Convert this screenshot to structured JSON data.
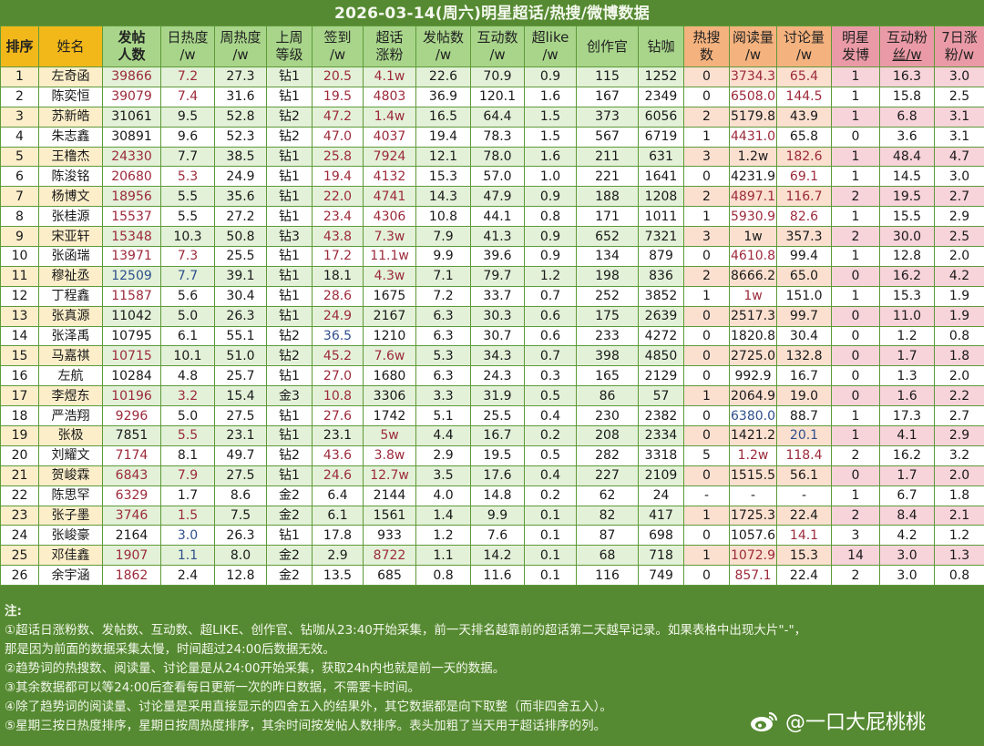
{
  "title": "2026-03-14(周六)明星超话/热搜/微博数据",
  "columns": [
    {
      "key": "rank",
      "label": "排序",
      "group": "yel",
      "bold": true
    },
    {
      "key": "name",
      "label": "姓名",
      "group": "yel",
      "bold": false
    },
    {
      "key": "posters",
      "label": "发帖人数",
      "group": "grn",
      "bold": true
    },
    {
      "key": "daily_heat",
      "label": "日热度/w",
      "group": "grn",
      "bold": false
    },
    {
      "key": "weekly_heat",
      "label": "周热度/w",
      "group": "grn",
      "bold": false
    },
    {
      "key": "last_week_level",
      "label": "上周等级",
      "group": "grn",
      "bold": false
    },
    {
      "key": "checkin",
      "label": "签到/w",
      "group": "grn",
      "bold": false
    },
    {
      "key": "topic_fans_gain",
      "label": "超话涨粉",
      "group": "grn",
      "bold": false
    },
    {
      "key": "posts",
      "label": "发帖数/w",
      "group": "grn",
      "bold": false
    },
    {
      "key": "interactions",
      "label": "互动数/w",
      "group": "grn",
      "bold": false
    },
    {
      "key": "super_like",
      "label": "超like/w",
      "group": "grn",
      "bold": false
    },
    {
      "key": "creator",
      "label": "创作官",
      "group": "grn",
      "bold": false
    },
    {
      "key": "diamond_coffee",
      "label": "钻咖",
      "group": "grn",
      "bold": false
    },
    {
      "key": "hot_search",
      "label": "热搜数",
      "group": "org",
      "bold": false
    },
    {
      "key": "reads",
      "label": "阅读量/w",
      "group": "org",
      "bold": false
    },
    {
      "key": "discussions",
      "label": "讨论量/w",
      "group": "org",
      "bold": false
    },
    {
      "key": "star_posts",
      "label": "明星发博",
      "group": "pnk",
      "bold": false
    },
    {
      "key": "interactive_fans",
      "label": "互动粉丝/w",
      "group": "pnk",
      "bold": false
    },
    {
      "key": "fans_7d",
      "label": "7日涨粉/w",
      "group": "pnk",
      "bold": false
    }
  ],
  "header": {
    "rank": "排序",
    "name": "姓名",
    "posters_1": "发帖",
    "posters_2": "人数",
    "daily_heat_1": "日热度",
    "daily_heat_2": "/w",
    "weekly_heat_1": "周热度",
    "weekly_heat_2": "/w",
    "level_1": "上周",
    "level_2": "等级",
    "checkin_1": "签到",
    "checkin_2": "/w",
    "fans_gain_1": "超话",
    "fans_gain_2": "涨粉",
    "posts_1": "发帖数",
    "posts_2": "/w",
    "interactions_1": "互动数",
    "interactions_2": "/w",
    "superlike_1": "超like",
    "superlike_2": "/w",
    "creator": "创作官",
    "diamond": "钻咖",
    "hot_search_1": "热搜",
    "hot_search_2": "数",
    "reads_1": "阅读量",
    "reads_2": "/w",
    "discussions_1": "讨论量",
    "discussions_2": "/w",
    "star_posts_1": "明星",
    "star_posts_2": "发博",
    "int_fans_1": "互动粉",
    "int_fans_2": "丝/w",
    "fans7_1": "7日涨",
    "fans7_2": "粉/w"
  },
  "rows": [
    {
      "rank": "1",
      "name": "左奇函",
      "posters": "39866",
      "daily_heat": "7.2",
      "weekly_heat": "27.3",
      "level": "钻1",
      "checkin": "20.5",
      "fans_gain": "4.1w",
      "posts": "22.6",
      "interactions": "70.9",
      "super_like": "0.9",
      "creator": "115",
      "diamond": "1252",
      "hot_search": "0",
      "reads": "3734.3",
      "discussions": "65.4",
      "star_posts": "1",
      "int_fans": "16.3",
      "fans7": "3.0"
    },
    {
      "rank": "2",
      "name": "陈奕恒",
      "posters": "39079",
      "daily_heat": "7.4",
      "weekly_heat": "31.6",
      "level": "钻1",
      "checkin": "19.5",
      "fans_gain": "4803",
      "posts": "36.9",
      "interactions": "120.1",
      "super_like": "1.6",
      "creator": "167",
      "diamond": "2349",
      "hot_search": "0",
      "reads": "6508.0",
      "discussions": "144.5",
      "star_posts": "1",
      "int_fans": "15.8",
      "fans7": "2.5"
    },
    {
      "rank": "3",
      "name": "苏新皓",
      "posters": "31061",
      "daily_heat": "9.5",
      "weekly_heat": "52.8",
      "level": "钻2",
      "checkin": "47.2",
      "fans_gain": "1.4w",
      "posts": "16.5",
      "interactions": "64.4",
      "super_like": "1.5",
      "creator": "373",
      "diamond": "6056",
      "hot_search": "2",
      "reads": "5179.8",
      "discussions": "43.9",
      "star_posts": "1",
      "int_fans": "6.8",
      "fans7": "3.1"
    },
    {
      "rank": "4",
      "name": "朱志鑫",
      "posters": "30891",
      "daily_heat": "9.6",
      "weekly_heat": "52.3",
      "level": "钻2",
      "checkin": "47.0",
      "fans_gain": "4037",
      "posts": "19.4",
      "interactions": "78.3",
      "super_like": "1.5",
      "creator": "567",
      "diamond": "6719",
      "hot_search": "1",
      "reads": "4431.0",
      "discussions": "65.8",
      "star_posts": "0",
      "int_fans": "3.6",
      "fans7": "3.1"
    },
    {
      "rank": "5",
      "name": "王橹杰",
      "posters": "24330",
      "daily_heat": "7.7",
      "weekly_heat": "38.5",
      "level": "钻1",
      "checkin": "25.8",
      "fans_gain": "7924",
      "posts": "12.1",
      "interactions": "78.0",
      "super_like": "1.6",
      "creator": "211",
      "diamond": "631",
      "hot_search": "3",
      "reads": "1.2w",
      "discussions": "182.6",
      "star_posts": "1",
      "int_fans": "48.4",
      "fans7": "4.7"
    },
    {
      "rank": "6",
      "name": "陈浚铭",
      "posters": "20680",
      "daily_heat": "5.3",
      "weekly_heat": "24.9",
      "level": "钻1",
      "checkin": "19.4",
      "fans_gain": "4132",
      "posts": "15.3",
      "interactions": "57.0",
      "super_like": "1.0",
      "creator": "221",
      "diamond": "1641",
      "hot_search": "0",
      "reads": "4231.9",
      "discussions": "69.1",
      "star_posts": "1",
      "int_fans": "14.5",
      "fans7": "3.0"
    },
    {
      "rank": "7",
      "name": "杨博文",
      "posters": "18956",
      "daily_heat": "5.5",
      "weekly_heat": "35.6",
      "level": "钻1",
      "checkin": "22.0",
      "fans_gain": "4741",
      "posts": "14.3",
      "interactions": "47.9",
      "super_like": "0.9",
      "creator": "188",
      "diamond": "1208",
      "hot_search": "2",
      "reads": "4897.1",
      "discussions": "116.7",
      "star_posts": "2",
      "int_fans": "19.5",
      "fans7": "2.7"
    },
    {
      "rank": "8",
      "name": "张桂源",
      "posters": "15537",
      "daily_heat": "5.5",
      "weekly_heat": "27.2",
      "level": "钻1",
      "checkin": "23.4",
      "fans_gain": "4306",
      "posts": "10.8",
      "interactions": "44.1",
      "super_like": "0.8",
      "creator": "171",
      "diamond": "1011",
      "hot_search": "1",
      "reads": "5930.9",
      "discussions": "82.6",
      "star_posts": "1",
      "int_fans": "15.5",
      "fans7": "2.9"
    },
    {
      "rank": "9",
      "name": "宋亚轩",
      "posters": "15348",
      "daily_heat": "10.3",
      "weekly_heat": "50.8",
      "level": "钻3",
      "checkin": "43.8",
      "fans_gain": "7.3w",
      "posts": "7.9",
      "interactions": "41.3",
      "super_like": "0.9",
      "creator": "652",
      "diamond": "7321",
      "hot_search": "3",
      "reads": "1w",
      "discussions": "357.3",
      "star_posts": "2",
      "int_fans": "30.0",
      "fans7": "2.5"
    },
    {
      "rank": "10",
      "name": "张函瑞",
      "posters": "13971",
      "daily_heat": "7.3",
      "weekly_heat": "25.5",
      "level": "钻1",
      "checkin": "17.2",
      "fans_gain": "11.1w",
      "posts": "9.9",
      "interactions": "39.6",
      "super_like": "0.9",
      "creator": "134",
      "diamond": "879",
      "hot_search": "0",
      "reads": "4610.8",
      "discussions": "99.4",
      "star_posts": "1",
      "int_fans": "12.8",
      "fans7": "2.0"
    },
    {
      "rank": "11",
      "name": "穆祉丞",
      "posters": "12509",
      "daily_heat": "7.7",
      "weekly_heat": "39.1",
      "level": "钻1",
      "checkin": "18.1",
      "fans_gain": "4.3w",
      "posts": "7.1",
      "interactions": "79.7",
      "super_like": "1.2",
      "creator": "198",
      "diamond": "836",
      "hot_search": "2",
      "reads": "8666.2",
      "discussions": "65.0",
      "star_posts": "0",
      "int_fans": "16.2",
      "fans7": "4.2"
    },
    {
      "rank": "12",
      "name": "丁程鑫",
      "posters": "11587",
      "daily_heat": "5.6",
      "weekly_heat": "30.4",
      "level": "钻1",
      "checkin": "28.6",
      "fans_gain": "1675",
      "posts": "7.2",
      "interactions": "33.7",
      "super_like": "0.7",
      "creator": "252",
      "diamond": "3852",
      "hot_search": "1",
      "reads": "1w",
      "discussions": "151.0",
      "star_posts": "1",
      "int_fans": "15.3",
      "fans7": "1.9"
    },
    {
      "rank": "13",
      "name": "张真源",
      "posters": "11042",
      "daily_heat": "5.0",
      "weekly_heat": "26.3",
      "level": "钻1",
      "checkin": "24.9",
      "fans_gain": "2167",
      "posts": "6.3",
      "interactions": "30.3",
      "super_like": "0.6",
      "creator": "175",
      "diamond": "2639",
      "hot_search": "0",
      "reads": "2517.3",
      "discussions": "99.7",
      "star_posts": "0",
      "int_fans": "11.0",
      "fans7": "1.9"
    },
    {
      "rank": "14",
      "name": "张泽禹",
      "posters": "10795",
      "daily_heat": "6.1",
      "weekly_heat": "55.1",
      "level": "钻2",
      "checkin": "36.5",
      "fans_gain": "1210",
      "posts": "6.3",
      "interactions": "30.7",
      "super_like": "0.6",
      "creator": "233",
      "diamond": "4272",
      "hot_search": "0",
      "reads": "1820.8",
      "discussions": "30.4",
      "star_posts": "0",
      "int_fans": "1.2",
      "fans7": "0.8"
    },
    {
      "rank": "15",
      "name": "马嘉祺",
      "posters": "10715",
      "daily_heat": "10.1",
      "weekly_heat": "51.0",
      "level": "钻2",
      "checkin": "45.2",
      "fans_gain": "7.6w",
      "posts": "5.3",
      "interactions": "34.3",
      "super_like": "0.7",
      "creator": "398",
      "diamond": "4850",
      "hot_search": "0",
      "reads": "2725.0",
      "discussions": "132.8",
      "star_posts": "0",
      "int_fans": "1.7",
      "fans7": "1.8"
    },
    {
      "rank": "16",
      "name": "左航",
      "posters": "10284",
      "daily_heat": "4.8",
      "weekly_heat": "25.7",
      "level": "钻1",
      "checkin": "27.0",
      "fans_gain": "1680",
      "posts": "6.3",
      "interactions": "24.3",
      "super_like": "0.3",
      "creator": "165",
      "diamond": "2129",
      "hot_search": "0",
      "reads": "992.9",
      "discussions": "16.7",
      "star_posts": "0",
      "int_fans": "1.3",
      "fans7": "2.0"
    },
    {
      "rank": "17",
      "name": "李煜东",
      "posters": "10196",
      "daily_heat": "3.2",
      "weekly_heat": "15.4",
      "level": "金3",
      "checkin": "10.8",
      "fans_gain": "3306",
      "posts": "3.3",
      "interactions": "31.9",
      "super_like": "0.5",
      "creator": "86",
      "diamond": "57",
      "hot_search": "1",
      "reads": "2064.9",
      "discussions": "19.0",
      "star_posts": "0",
      "int_fans": "1.6",
      "fans7": "2.2"
    },
    {
      "rank": "18",
      "name": "严浩翔",
      "posters": "9296",
      "daily_heat": "5.0",
      "weekly_heat": "27.5",
      "level": "钻1",
      "checkin": "27.6",
      "fans_gain": "1742",
      "posts": "5.1",
      "interactions": "25.5",
      "super_like": "0.4",
      "creator": "230",
      "diamond": "2382",
      "hot_search": "0",
      "reads": "6380.0",
      "discussions": "88.7",
      "star_posts": "1",
      "int_fans": "17.3",
      "fans7": "2.7"
    },
    {
      "rank": "19",
      "name": "张极",
      "posters": "7851",
      "daily_heat": "5.5",
      "weekly_heat": "23.1",
      "level": "钻1",
      "checkin": "23.1",
      "fans_gain": "5w",
      "posts": "4.4",
      "interactions": "16.7",
      "super_like": "0.2",
      "creator": "208",
      "diamond": "2334",
      "hot_search": "0",
      "reads": "1421.2",
      "discussions": "20.1",
      "star_posts": "1",
      "int_fans": "4.1",
      "fans7": "2.9"
    },
    {
      "rank": "20",
      "name": "刘耀文",
      "posters": "7174",
      "daily_heat": "8.1",
      "weekly_heat": "49.7",
      "level": "钻2",
      "checkin": "43.6",
      "fans_gain": "3.8w",
      "posts": "2.9",
      "interactions": "19.5",
      "super_like": "0.5",
      "creator": "282",
      "diamond": "3318",
      "hot_search": "5",
      "reads": "1.2w",
      "discussions": "118.4",
      "star_posts": "2",
      "int_fans": "16.2",
      "fans7": "3.2"
    },
    {
      "rank": "21",
      "name": "贺峻霖",
      "posters": "6843",
      "daily_heat": "7.9",
      "weekly_heat": "27.5",
      "level": "钻1",
      "checkin": "24.6",
      "fans_gain": "12.7w",
      "posts": "3.5",
      "interactions": "17.6",
      "super_like": "0.4",
      "creator": "227",
      "diamond": "2109",
      "hot_search": "0",
      "reads": "1515.5",
      "discussions": "56.1",
      "star_posts": "0",
      "int_fans": "1.7",
      "fans7": "2.0"
    },
    {
      "rank": "22",
      "name": "陈思罕",
      "posters": "6329",
      "daily_heat": "1.7",
      "weekly_heat": "8.6",
      "level": "金2",
      "checkin": "6.4",
      "fans_gain": "2144",
      "posts": "4.0",
      "interactions": "14.8",
      "super_like": "0.2",
      "creator": "62",
      "diamond": "24",
      "hot_search": "-",
      "reads": "-",
      "discussions": "-",
      "star_posts": "1",
      "int_fans": "6.7",
      "fans7": "1.8"
    },
    {
      "rank": "23",
      "name": "张子墨",
      "posters": "3746",
      "daily_heat": "1.5",
      "weekly_heat": "7.5",
      "level": "金2",
      "checkin": "6.1",
      "fans_gain": "1561",
      "posts": "1.4",
      "interactions": "9.9",
      "super_like": "0.1",
      "creator": "82",
      "diamond": "417",
      "hot_search": "1",
      "reads": "1725.3",
      "discussions": "22.4",
      "star_posts": "2",
      "int_fans": "8.4",
      "fans7": "2.1"
    },
    {
      "rank": "24",
      "name": "张峻豪",
      "posters": "2164",
      "daily_heat": "3.0",
      "weekly_heat": "26.3",
      "level": "钻1",
      "checkin": "17.8",
      "fans_gain": "933",
      "posts": "1.2",
      "interactions": "7.6",
      "super_like": "0.1",
      "creator": "87",
      "diamond": "698",
      "hot_search": "0",
      "reads": "1057.6",
      "discussions": "14.1",
      "star_posts": "3",
      "int_fans": "4.2",
      "fans7": "1.2"
    },
    {
      "rank": "25",
      "name": "邓佳鑫",
      "posters": "1907",
      "daily_heat": "1.1",
      "weekly_heat": "8.0",
      "level": "金2",
      "checkin": "2.9",
      "fans_gain": "8722",
      "posts": "1.1",
      "interactions": "14.2",
      "super_like": "0.1",
      "creator": "68",
      "diamond": "718",
      "hot_search": "1",
      "reads": "1072.9",
      "discussions": "15.3",
      "star_posts": "14",
      "int_fans": "3.0",
      "fans7": "1.3"
    },
    {
      "rank": "26",
      "name": "余宇涵",
      "posters": "1862",
      "daily_heat": "2.4",
      "weekly_heat": "12.8",
      "level": "金2",
      "checkin": "13.5",
      "fans_gain": "685",
      "posts": "0.8",
      "interactions": "11.6",
      "super_like": "0.1",
      "creator": "116",
      "diamond": "749",
      "hot_search": "0",
      "reads": "857.1",
      "discussions": "22.4",
      "star_posts": "2",
      "int_fans": "3.0",
      "fans7": "0.8"
    }
  ],
  "cell_colors": {
    "red": "#9c2a3a",
    "blue": "#2e4f8c",
    "red_cells": {
      "posters": [
        1,
        2,
        5,
        6,
        7,
        8,
        9,
        10,
        12,
        15,
        17,
        18,
        20,
        21,
        22,
        23,
        25,
        26
      ],
      "blue_posters": [
        11
      ],
      "daily_heat": [
        1,
        2,
        6,
        10,
        17,
        19,
        21,
        23
      ],
      "blue_daily_heat": [
        11,
        24,
        25
      ],
      "checkin": [
        1,
        2,
        3,
        4,
        5,
        6,
        7,
        8,
        9,
        10,
        12,
        13,
        15,
        16,
        17,
        18,
        20,
        21
      ],
      "blue_checkin": [
        14
      ],
      "fans_gain": [
        1,
        2,
        3,
        4,
        5,
        6,
        7,
        8,
        9,
        10,
        11,
        15,
        19,
        20,
        21,
        25
      ],
      "reads": [
        1,
        2,
        4,
        7,
        8,
        10,
        12,
        20,
        25,
        26
      ],
      "blue_reads": [
        18
      ],
      "discussions": [
        1,
        2,
        5,
        6,
        7,
        8,
        20,
        24
      ],
      "blue_discussions": [
        19
      ]
    }
  },
  "notes": {
    "heading": "注:",
    "lines": [
      "①超话日涨粉数、发帖数、互动数、超LIKE、创作官、钻咖从23:40开始采集，前一天排名越靠前的超话第二天越早记录。如果表格中出现大片\"-\"，",
      "那是因为前面的数据采集太慢，时间超过24:00后数据无效。",
      "②趋势词的热搜数、阅读量、讨论量是从24:00开始采集，获取24h内也就是前一天的数据。",
      "③其余数据都可以等24:00后查看每日更新一次的昨日数据，不需要卡时间。",
      "④除了趋势词的阅读量、讨论量是采用直接显示的四舍五入的结果外，其它数据都是向下取整（而非四舍五入）。",
      "⑤星期三按日热度排序，星期日按周热度排序，其余时间按发帖人数排序。表头加粗了当天用于超话排序的列。"
    ]
  },
  "watermark": {
    "icon": "weibo-icon",
    "text": "@一口大屁桃桃"
  },
  "theme": {
    "background": "#568a32",
    "header_yellow": "#f2b81a",
    "header_green": "#a8d58a",
    "header_orange": "#f4b27e",
    "header_pink": "#ea9aa6"
  }
}
